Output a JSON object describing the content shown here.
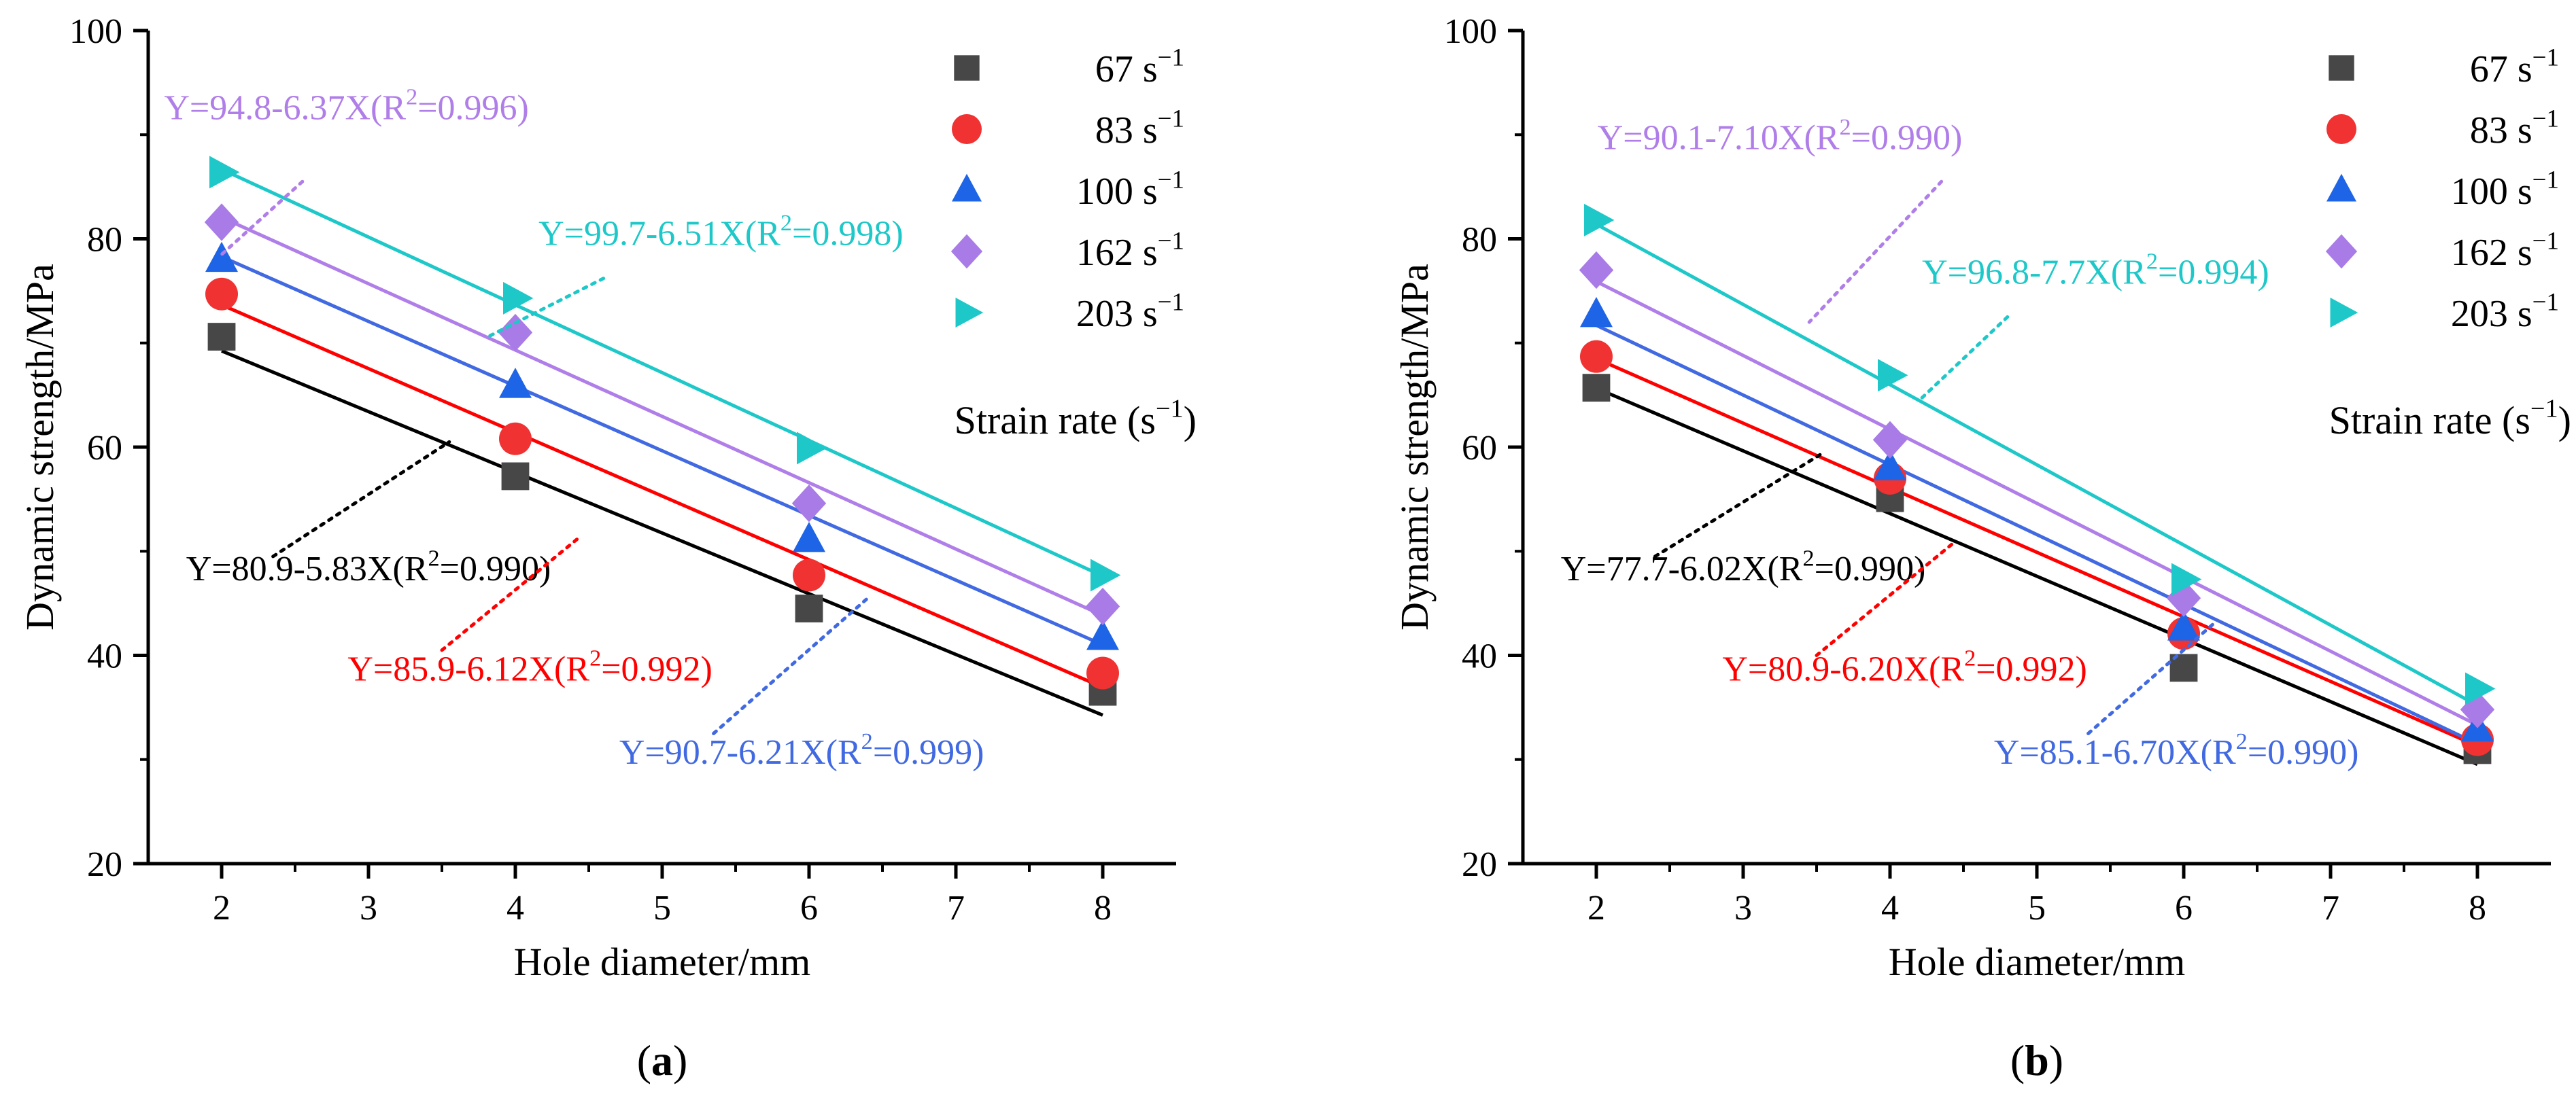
{
  "chart_data": [
    {
      "type": "scatter",
      "panel_label": "(a)",
      "panel_letter": "a",
      "xlabel": "Hole diameter/mm",
      "ylabel": "Dynamic strength/MPa",
      "xlim": [
        1.5,
        8.5
      ],
      "ylim": [
        20,
        100
      ],
      "xticks": [
        2,
        3,
        4,
        5,
        6,
        7,
        8
      ],
      "yticks": [
        20,
        40,
        60,
        80,
        100
      ],
      "legend_title": "Strain rate (s⁻¹)",
      "legend_position": "top-right",
      "x": [
        2,
        4,
        6,
        8
      ],
      "series": [
        {
          "name": "67 s⁻¹",
          "rate": "67",
          "marker": "square",
          "color": "#474747",
          "line_color": "#000000",
          "values": [
            70.6,
            57.2,
            44.5,
            36.5
          ],
          "fit_text": "Y=80.9-5.83X(R²=0.990)",
          "fit": {
            "intercept": 80.9,
            "slope": -5.83
          }
        },
        {
          "name": "83 s⁻¹",
          "rate": "83",
          "marker": "circle",
          "color": "#f03232",
          "line_color": "#ff0000",
          "values": [
            74.7,
            60.8,
            47.7,
            38.3
          ],
          "fit_text": "Y=85.9-6.12X(R²=0.992)",
          "fit": {
            "intercept": 85.9,
            "slope": -6.12
          }
        },
        {
          "name": "100 s⁻¹",
          "rate": "100",
          "marker": "triangle-up",
          "color": "#1e64e6",
          "line_color": "#4169e1",
          "values": [
            78.0,
            65.9,
            51.1,
            41.7
          ],
          "fit_text": "Y=90.7-6.21X(R²=0.999)",
          "fit": {
            "intercept": 90.7,
            "slope": -6.21
          }
        },
        {
          "name": "162 s⁻¹",
          "rate": "162",
          "marker": "diamond",
          "color": "#a87be6",
          "line_color": "#b07ee8",
          "values": [
            81.6,
            71.0,
            54.6,
            44.7
          ],
          "fit_text": "Y=94.8-6.37X(R²=0.996)",
          "fit": {
            "intercept": 94.8,
            "slope": -6.37
          }
        },
        {
          "name": "203 s⁻¹",
          "rate": "203",
          "marker": "triangle-right",
          "color": "#1ec8c8",
          "line_color": "#1ec8c8",
          "values": [
            86.4,
            74.3,
            59.9,
            47.7
          ],
          "fit_text": "Y=99.7-6.51X(R²=0.998)",
          "fit": {
            "intercept": 99.7,
            "slope": -6.51
          }
        }
      ],
      "annotations": [
        {
          "series": 3,
          "text_x": 2.85,
          "text_y": 91.5,
          "line_from": [
            2.55,
            85.5
          ],
          "line_to": [
            2.0,
            78.5
          ]
        },
        {
          "series": 4,
          "text_x": 5.4,
          "text_y": 79.4,
          "line_from": [
            4.6,
            76.2
          ],
          "line_to": [
            3.8,
            70.5
          ]
        },
        {
          "series": 0,
          "text_x": 3.0,
          "text_y": 47.2,
          "line_from": [
            2.35,
            49.5
          ],
          "line_to": [
            3.55,
            60.5
          ]
        },
        {
          "series": 1,
          "text_x": 4.1,
          "text_y": 37.6,
          "line_from": [
            3.5,
            40.5
          ],
          "line_to": [
            4.45,
            51.5
          ]
        },
        {
          "series": 2,
          "text_x": 5.95,
          "text_y": 29.6,
          "line_from": [
            5.35,
            32.5
          ],
          "line_to": [
            6.4,
            45.5
          ]
        }
      ]
    },
    {
      "type": "scatter",
      "panel_label": "(b)",
      "panel_letter": "b",
      "xlabel": "Hole diameter/mm",
      "ylabel": "Dynamic strength/MPa",
      "xlim": [
        1.5,
        8.5
      ],
      "ylim": [
        20,
        100
      ],
      "xticks": [
        2,
        3,
        4,
        5,
        6,
        7,
        8
      ],
      "yticks": [
        20,
        40,
        60,
        80,
        100
      ],
      "legend_title": "Strain rate (s⁻¹)",
      "legend_position": "top-right",
      "x": [
        2,
        4,
        6,
        8
      ],
      "series": [
        {
          "name": "67 s⁻¹",
          "rate": "67",
          "marker": "square",
          "color": "#474747",
          "line_color": "#000000",
          "values": [
            65.7,
            55.1,
            38.8,
            30.9
          ],
          "fit_text": "Y=77.7-6.02X(R²=0.990)",
          "fit": {
            "intercept": 77.7,
            "slope": -6.02
          }
        },
        {
          "name": "83 s⁻¹",
          "rate": "83",
          "marker": "circle",
          "color": "#f03232",
          "line_color": "#ff0000",
          "values": [
            68.7,
            57.0,
            42.1,
            31.9
          ],
          "fit_text": "Y=80.9-6.20X(R²=0.992)",
          "fit": {
            "intercept": 80.9,
            "slope": -6.2
          }
        },
        {
          "name": "100 s⁻¹",
          "rate": "100",
          "marker": "triangle-up",
          "color": "#1e64e6",
          "line_color": "#4169e1",
          "values": [
            72.7,
            58.0,
            42.6,
            32.9
          ],
          "fit_text": "Y=85.1-6.70X(R²=0.990)",
          "fit": {
            "intercept": 85.1,
            "slope": -6.7
          }
        },
        {
          "name": "162 s⁻¹",
          "rate": "162",
          "marker": "diamond",
          "color": "#a87be6",
          "line_color": "#b07ee8",
          "values": [
            77.0,
            60.7,
            45.5,
            34.8
          ],
          "fit_text": "Y=90.1-7.10X(R²=0.990)",
          "fit": {
            "intercept": 90.1,
            "slope": -7.1
          }
        },
        {
          "name": "203 s⁻¹",
          "rate": "203",
          "marker": "triangle-right",
          "color": "#1ec8c8",
          "line_color": "#1ec8c8",
          "values": [
            81.8,
            66.9,
            47.3,
            36.8
          ],
          "fit_text": "Y=96.8-7.7X(R²=0.994)",
          "fit": {
            "intercept": 96.8,
            "slope": -7.7
          }
        }
      ],
      "annotations": [
        {
          "series": 3,
          "text_x": 3.25,
          "text_y": 88.6,
          "line_from": [
            4.35,
            85.5
          ],
          "line_to": [
            3.45,
            72.0
          ]
        },
        {
          "series": 4,
          "text_x": 5.4,
          "text_y": 75.7,
          "line_from": [
            4.8,
            72.5
          ],
          "line_to": [
            4.2,
            64.5
          ]
        },
        {
          "series": 0,
          "text_x": 3.0,
          "text_y": 47.2,
          "line_from": [
            2.4,
            49.5
          ],
          "line_to": [
            3.55,
            59.5
          ]
        },
        {
          "series": 1,
          "text_x": 4.1,
          "text_y": 37.6,
          "line_from": [
            3.5,
            40.0
          ],
          "line_to": [
            4.45,
            51.0
          ]
        },
        {
          "series": 2,
          "text_x": 5.95,
          "text_y": 29.6,
          "line_from": [
            5.35,
            32.5
          ],
          "line_to": [
            6.2,
            43.0
          ]
        }
      ]
    }
  ]
}
